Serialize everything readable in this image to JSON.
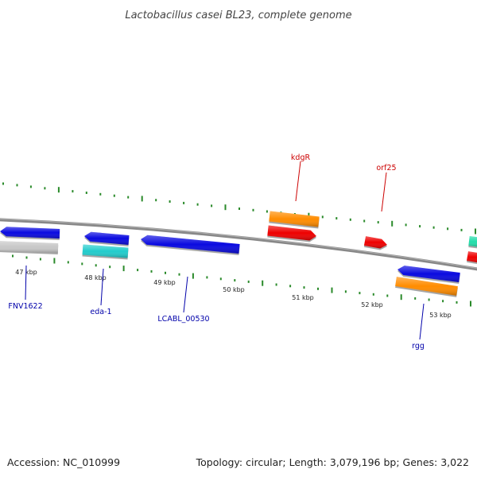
{
  "title": "Lactobacillus casei BL23, complete genome",
  "footer": {
    "accession": "Accession: NC_010999",
    "summary": "Topology: circular; Length: 3,079,196 bp; Genes: 3,022"
  },
  "colors": {
    "backbone": "#888888",
    "tick": "#2a8a2a",
    "forward_label": "#cc0000",
    "reverse_label": "#0000aa",
    "blue": "#0a0ae0",
    "cyan": "#22cccc",
    "orange": "#ff8c00",
    "red": "#ee0000",
    "gray": "#c8c8c8",
    "teal": "#22ddaa"
  },
  "scale_labels": [
    "47 kbp",
    "48 kbp",
    "49 kbp",
    "50 kbp",
    "51 kbp",
    "52 kbp",
    "53 kbp"
  ],
  "gene_labels": {
    "forward": [
      "kdgR",
      "orf25"
    ],
    "reverse": [
      "FNV1622",
      "eda-1",
      "LCABL_00530",
      "rgg"
    ]
  }
}
